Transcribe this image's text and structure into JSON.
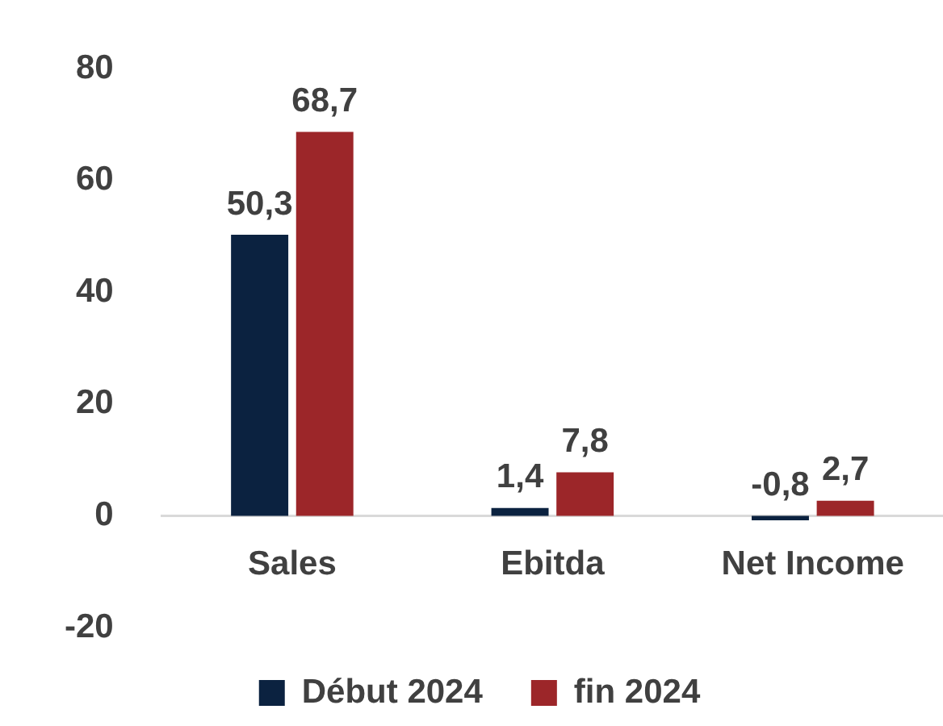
{
  "chart_data": {
    "type": "bar",
    "categories": [
      "Sales",
      "Ebitda",
      "Net Income"
    ],
    "series": [
      {
        "name": "Début 2024",
        "color": "#0b2240",
        "values": [
          50.3,
          1.4,
          -0.8
        ],
        "value_labels": [
          "50,3",
          "1,4",
          "-0,8"
        ]
      },
      {
        "name": "fin 2024",
        "color": "#9c2629",
        "values": [
          68.7,
          7.8,
          2.7
        ],
        "value_labels": [
          "68,7",
          "7,8",
          "2,7"
        ]
      }
    ],
    "ylim": [
      -20,
      80
    ],
    "yticks": [
      -20,
      0,
      20,
      40,
      60,
      80
    ],
    "grid": false,
    "legend": "bottom"
  }
}
